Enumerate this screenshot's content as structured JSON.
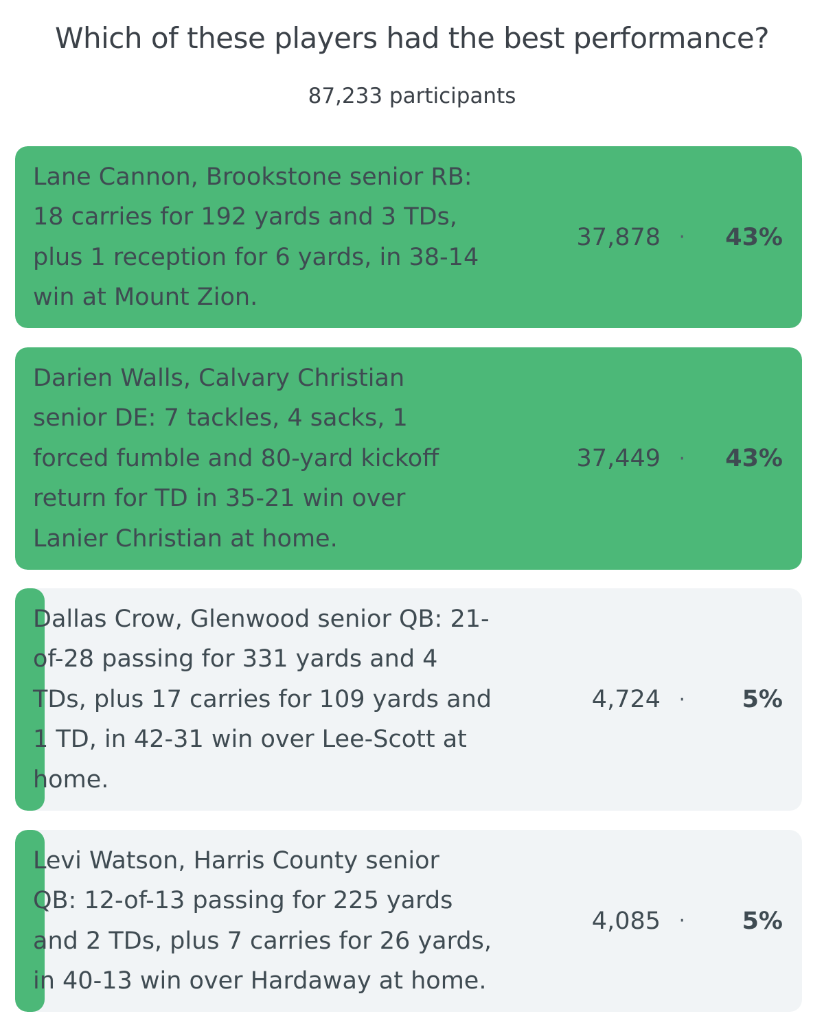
{
  "poll": {
    "question": "Which of these players had the best performance?",
    "participants": "87,233 participants",
    "separator": "·",
    "accent_color": "#4cb878",
    "track_color": "#f1f4f6",
    "options": [
      {
        "text": "Lane Cannon, Brookstone senior RB:\n18 carries for 192 yards and 3 TDs,\nplus 1 reception for 6 yards, in 38-14\nwin at Mount Zion.",
        "votes": "37,878",
        "percent": "43%",
        "share": 0.43
      },
      {
        "text": "Darien Walls, Calvary Christian\nsenior DE: 7 tackles, 4 sacks, 1\nforced fumble and 80-yard kickoff\nreturn for TD in 35-21 win over\nLanier Christian at home.",
        "votes": "37,449",
        "percent": "43%",
        "share": 0.43
      },
      {
        "text": "Dallas Crow, Glenwood senior QB: 21-\nof-28 passing for 331 yards and 4\nTDs, plus 17 carries for 109 yards and\n1 TD, in 42-31 win over Lee-Scott at\nhome.",
        "votes": "4,724",
        "percent": "5%",
        "share": 0.05
      },
      {
        "text": "Levi Watson, Harris County senior\nQB: 12-of-13 passing for 225 yards\nand 2 TDs, plus 7 carries for 26 yards,\nin 40-13 win over Hardaway at home.",
        "votes": "4,085",
        "percent": "5%",
        "share": 0.05
      }
    ]
  }
}
